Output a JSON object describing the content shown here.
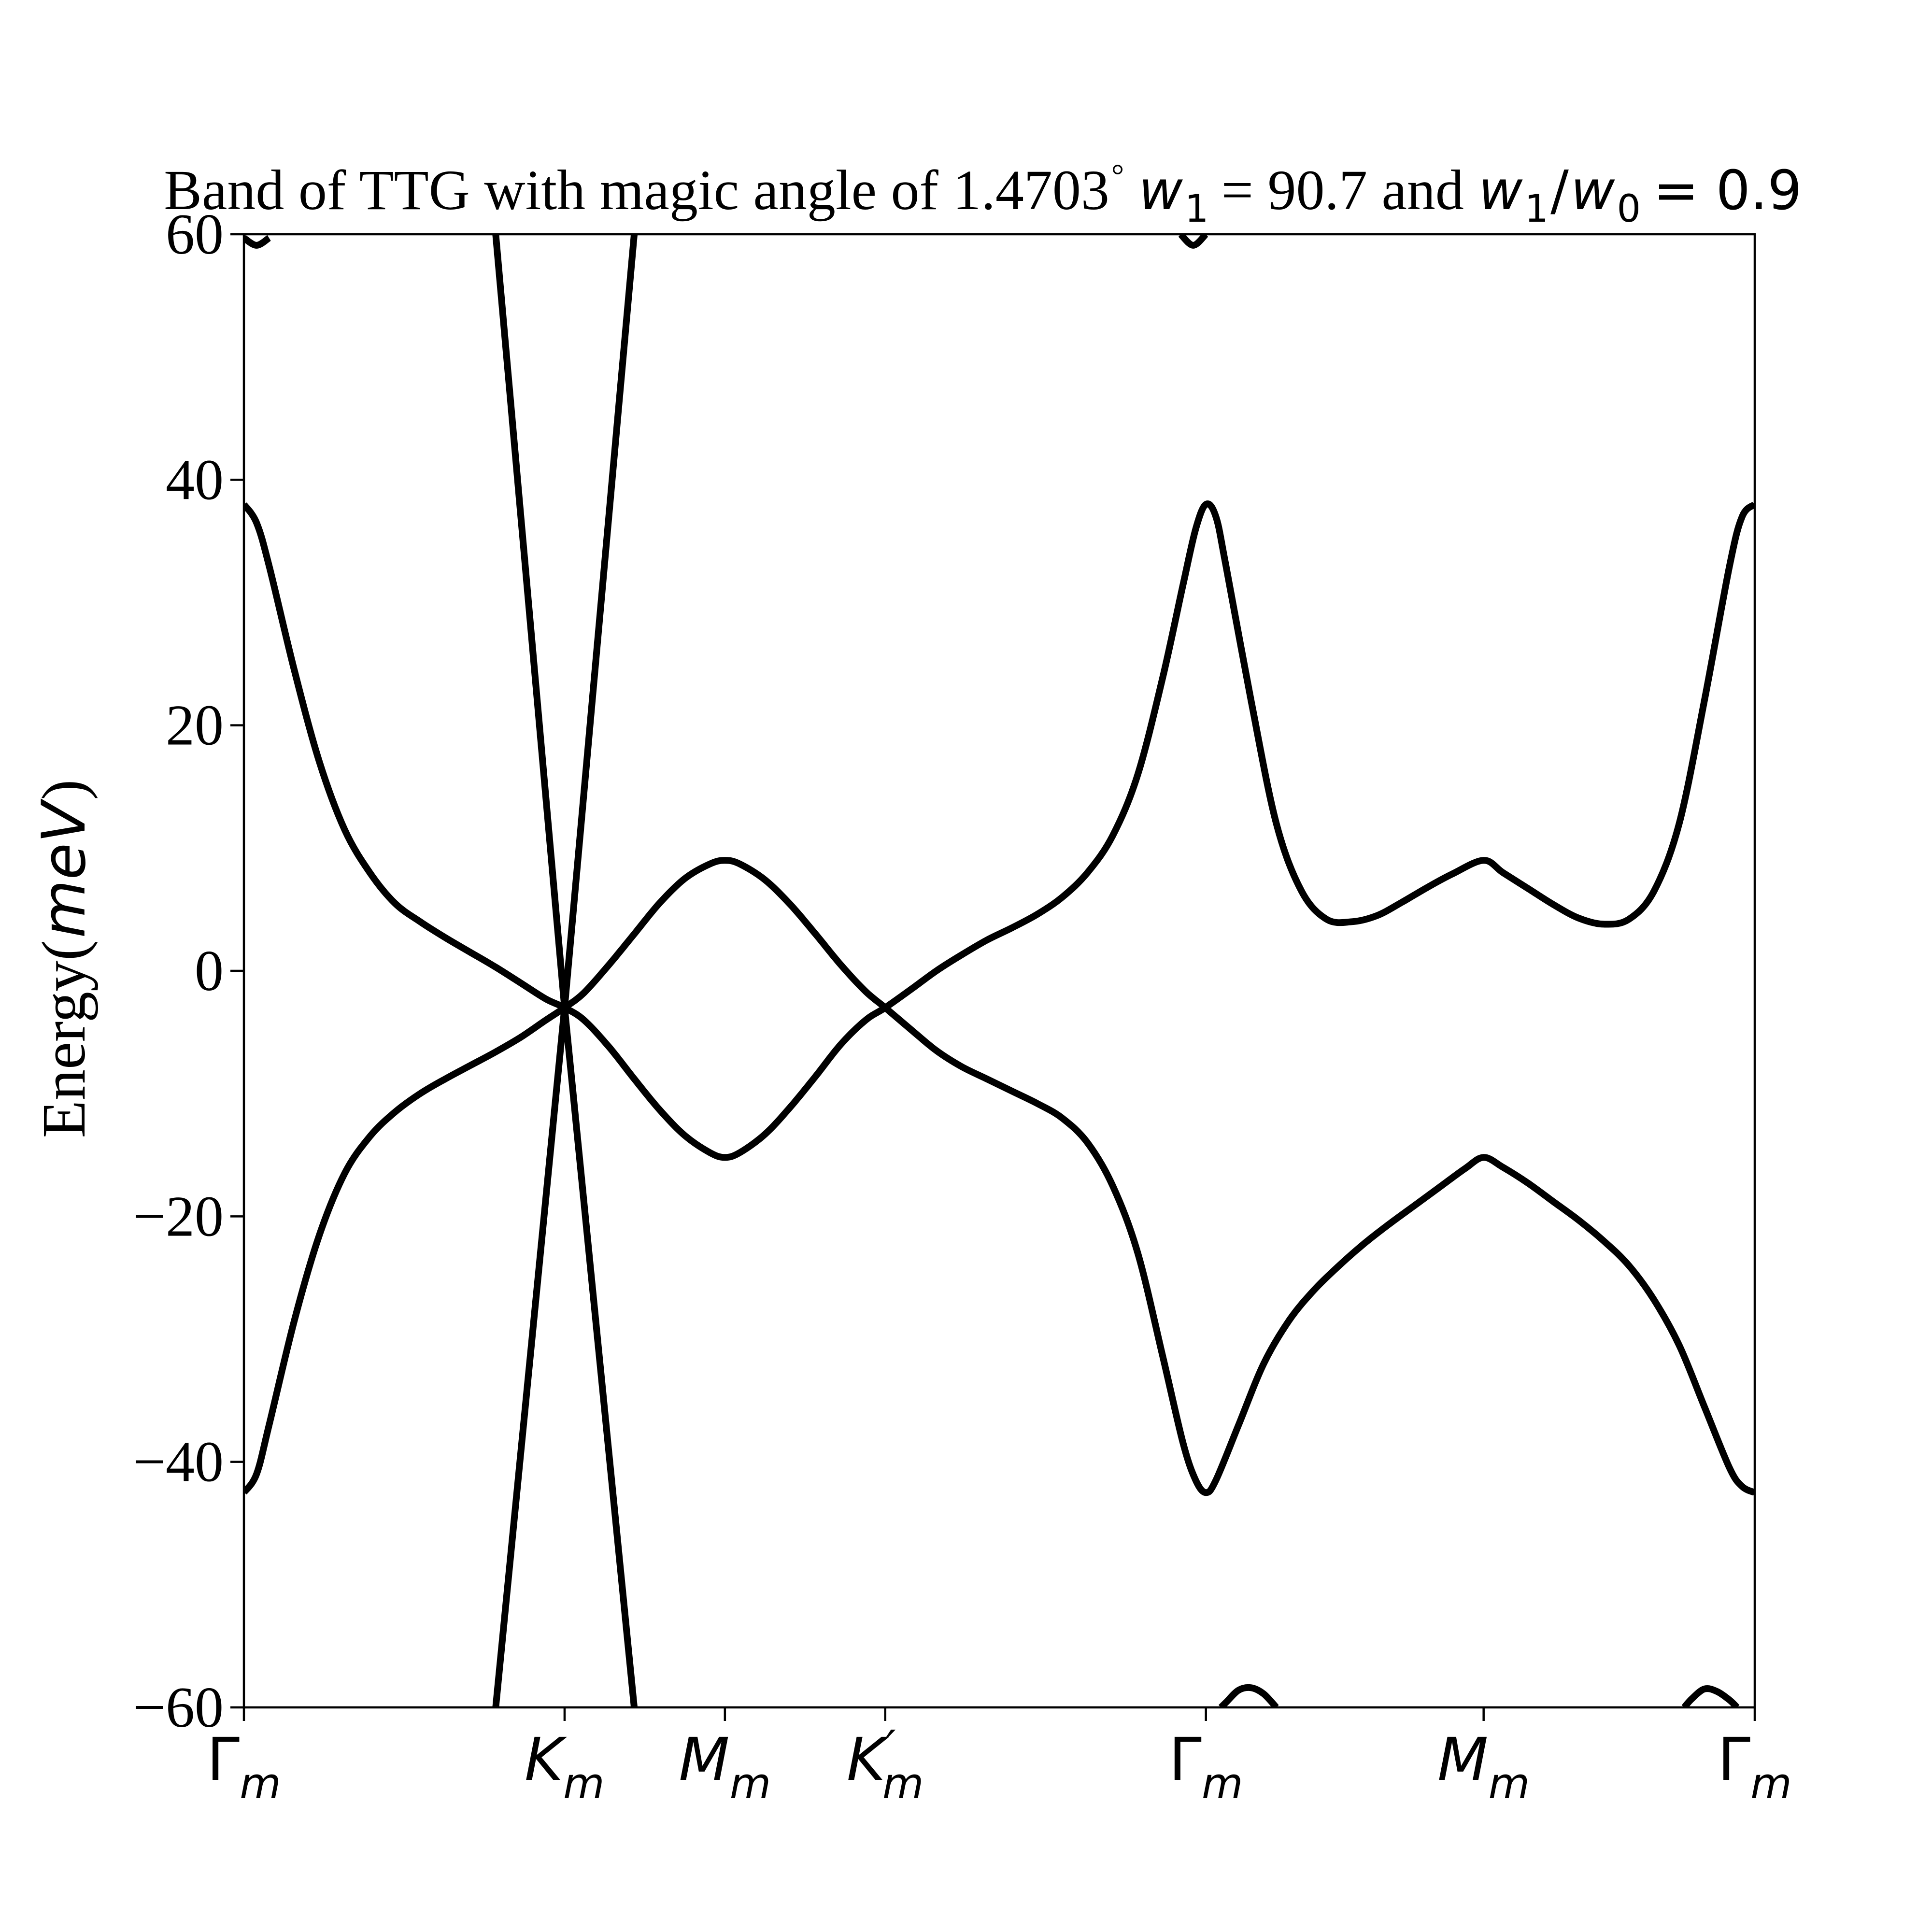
{
  "chart_data": {
    "type": "line",
    "title": {
      "prefix": "Band of TTG with magic angle of 1.4703",
      "degree": "°",
      "w1_symbol": "w",
      "w1_subscript": "1",
      "middle": "= 90.7 and",
      "ratio_num_symbol": "w",
      "ratio_num_sub": "1",
      "ratio_slash": "/",
      "ratio_den_symbol": "w",
      "ratio_den_sub": "0",
      "ratio_value": "= 0.9"
    },
    "ylabel": {
      "prefix": "Energy(",
      "unit": "meV",
      "suffix": ")"
    },
    "ylim": [
      -60,
      60
    ],
    "yticks": [
      -60,
      -40,
      -20,
      0,
      20,
      40,
      60
    ],
    "yticks_labels": [
      "−60",
      "−40",
      "−20",
      "0",
      "20",
      "40",
      "60"
    ],
    "xlim": [
      0,
      6
    ],
    "xticks": [
      {
        "pos": 0.0,
        "symbol": "Γ",
        "sub": "m",
        "prime": ""
      },
      {
        "pos": 1.2735,
        "symbol": "K",
        "sub": "m",
        "prime": ""
      },
      {
        "pos": 1.9102,
        "symbol": "M",
        "sub": "m",
        "prime": ""
      },
      {
        "pos": 2.5469,
        "symbol": "K",
        "sub": "m",
        "prime": "′"
      },
      {
        "pos": 3.8204,
        "symbol": "Γ",
        "sub": "m",
        "prime": ""
      },
      {
        "pos": 4.9233,
        "symbol": "M",
        "sub": "m",
        "prime": ""
      },
      {
        "pos": 6.0,
        "symbol": "Γ",
        "sub": "m",
        "prime": ""
      }
    ],
    "grid": false,
    "series": [
      {
        "points": [
          [
            0.0,
            38.0
          ],
          [
            0.05,
            36.5
          ],
          [
            0.1,
            33.0
          ],
          [
            0.2,
            24.5
          ],
          [
            0.3,
            17.0
          ],
          [
            0.4,
            11.5
          ],
          [
            0.5,
            8.0
          ],
          [
            0.6,
            5.5
          ],
          [
            0.7,
            4.0
          ],
          [
            0.8,
            2.7
          ],
          [
            0.9,
            1.5
          ],
          [
            1.0,
            0.3
          ],
          [
            1.1,
            -1.0
          ],
          [
            1.2,
            -2.3
          ],
          [
            1.2735,
            -3.0
          ],
          [
            1.35,
            -4.0
          ],
          [
            1.45,
            -6.2
          ],
          [
            1.55,
            -8.8
          ],
          [
            1.65,
            -11.3
          ],
          [
            1.75,
            -13.4
          ],
          [
            1.85,
            -14.8
          ],
          [
            1.9102,
            -15.2
          ],
          [
            1.97,
            -14.8
          ],
          [
            2.07,
            -13.3
          ],
          [
            2.17,
            -11.1
          ],
          [
            2.27,
            -8.6
          ],
          [
            2.37,
            -6.0
          ],
          [
            2.47,
            -4.0
          ],
          [
            2.5469,
            -3.0
          ],
          [
            2.65,
            -1.5
          ],
          [
            2.75,
            0.0
          ],
          [
            2.85,
            1.3
          ],
          [
            2.95,
            2.5
          ],
          [
            3.05,
            3.5
          ],
          [
            3.15,
            4.6
          ],
          [
            3.25,
            6.0
          ],
          [
            3.35,
            8.0
          ],
          [
            3.45,
            11.0
          ],
          [
            3.55,
            16.0
          ],
          [
            3.65,
            24.0
          ],
          [
            3.73,
            31.5
          ],
          [
            3.78,
            36.0
          ],
          [
            3.8204,
            38.0
          ],
          [
            3.86,
            37.0
          ],
          [
            3.9,
            33.0
          ],
          [
            4.0,
            22.0
          ],
          [
            4.1,
            12.0
          ],
          [
            4.2,
            6.5
          ],
          [
            4.3,
            4.2
          ],
          [
            4.4,
            4.0
          ],
          [
            4.5,
            4.5
          ],
          [
            4.6,
            5.6
          ],
          [
            4.7,
            6.8
          ],
          [
            4.8,
            7.9
          ],
          [
            4.9233,
            9.0
          ],
          [
            5.0,
            8.0
          ],
          [
            5.1,
            6.7
          ],
          [
            5.2,
            5.4
          ],
          [
            5.3,
            4.3
          ],
          [
            5.4,
            3.8
          ],
          [
            5.5,
            4.2
          ],
          [
            5.6,
            6.5
          ],
          [
            5.7,
            12.0
          ],
          [
            5.8,
            22.0
          ],
          [
            5.9,
            33.0
          ],
          [
            5.95,
            37.0
          ],
          [
            6.0,
            38.0
          ]
        ]
      },
      {
        "points": [
          [
            0.0,
            -42.5
          ],
          [
            0.05,
            -41.0
          ],
          [
            0.1,
            -37.0
          ],
          [
            0.2,
            -28.5
          ],
          [
            0.3,
            -21.5
          ],
          [
            0.4,
            -16.5
          ],
          [
            0.5,
            -13.5
          ],
          [
            0.6,
            -11.5
          ],
          [
            0.7,
            -10.0
          ],
          [
            0.8,
            -8.8
          ],
          [
            0.9,
            -7.7
          ],
          [
            1.0,
            -6.6
          ],
          [
            1.1,
            -5.4
          ],
          [
            1.2,
            -4.0
          ],
          [
            1.2735,
            -3.0
          ],
          [
            1.35,
            -1.8
          ],
          [
            1.45,
            0.5
          ],
          [
            1.55,
            3.0
          ],
          [
            1.65,
            5.5
          ],
          [
            1.75,
            7.5
          ],
          [
            1.85,
            8.7
          ],
          [
            1.9102,
            9.0
          ],
          [
            1.97,
            8.7
          ],
          [
            2.07,
            7.4
          ],
          [
            2.17,
            5.4
          ],
          [
            2.27,
            3.0
          ],
          [
            2.37,
            0.5
          ],
          [
            2.47,
            -1.7
          ],
          [
            2.5469,
            -3.0
          ],
          [
            2.65,
            -4.8
          ],
          [
            2.75,
            -6.5
          ],
          [
            2.85,
            -7.8
          ],
          [
            2.95,
            -8.8
          ],
          [
            3.05,
            -9.8
          ],
          [
            3.15,
            -10.8
          ],
          [
            3.25,
            -12.0
          ],
          [
            3.35,
            -14.0
          ],
          [
            3.45,
            -17.5
          ],
          [
            3.55,
            -23.0
          ],
          [
            3.65,
            -31.5
          ],
          [
            3.73,
            -38.5
          ],
          [
            3.78,
            -41.5
          ],
          [
            3.8204,
            -42.5
          ],
          [
            3.86,
            -41.5
          ],
          [
            3.95,
            -37.0
          ],
          [
            4.05,
            -32.0
          ],
          [
            4.15,
            -28.5
          ],
          [
            4.25,
            -26.0
          ],
          [
            4.35,
            -24.0
          ],
          [
            4.45,
            -22.2
          ],
          [
            4.55,
            -20.6
          ],
          [
            4.65,
            -19.1
          ],
          [
            4.75,
            -17.6
          ],
          [
            4.85,
            -16.1
          ],
          [
            4.9233,
            -15.2
          ],
          [
            5.0,
            -16.0
          ],
          [
            5.1,
            -17.3
          ],
          [
            5.2,
            -18.8
          ],
          [
            5.3,
            -20.3
          ],
          [
            5.4,
            -22.0
          ],
          [
            5.5,
            -24.0
          ],
          [
            5.6,
            -26.8
          ],
          [
            5.7,
            -30.5
          ],
          [
            5.8,
            -35.5
          ],
          [
            5.9,
            -40.5
          ],
          [
            5.95,
            -42.0
          ],
          [
            6.0,
            -42.5
          ]
        ]
      },
      {
        "points": [
          [
            1.0,
            60.0
          ],
          [
            1.2735,
            -3.0
          ],
          [
            1.55,
            -60.0
          ]
        ]
      },
      {
        "points": [
          [
            1.0,
            -60.0
          ],
          [
            1.2735,
            -3.0
          ],
          [
            1.55,
            60.0
          ]
        ]
      },
      {
        "points": [
          [
            0.0,
            59.7
          ],
          [
            0.05,
            59.1
          ],
          [
            0.1,
            59.7
          ]
        ]
      },
      {
        "points": [
          [
            3.72,
            60.0
          ],
          [
            3.77,
            59.1
          ],
          [
            3.8204,
            60.0
          ]
        ]
      },
      {
        "points": [
          [
            3.88,
            -60.0
          ],
          [
            3.9,
            -59.6
          ],
          [
            3.95,
            -58.6
          ],
          [
            4.0,
            -58.4
          ],
          [
            4.05,
            -58.9
          ],
          [
            4.1,
            -60.0
          ]
        ]
      },
      {
        "points": [
          [
            5.72,
            -60.0
          ],
          [
            5.75,
            -59.3
          ],
          [
            5.8,
            -58.5
          ],
          [
            5.85,
            -58.7
          ],
          [
            5.9,
            -59.4
          ],
          [
            5.93,
            -60.0
          ]
        ]
      }
    ]
  }
}
